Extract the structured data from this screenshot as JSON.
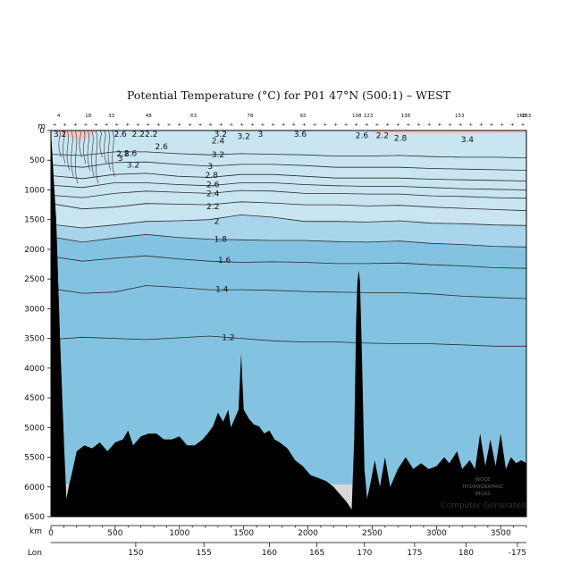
{
  "chart_data": {
    "type": "contour section",
    "title": "Potential Temperature (°C) for P01 47°N (500:1) – WEST",
    "ylabel": "m",
    "xlabel": "km",
    "lon_label": "Lon",
    "ylim": [
      0,
      6500
    ],
    "xlim": [
      0,
      3700
    ],
    "y_ticks": [
      0,
      500,
      1000,
      1500,
      2000,
      2500,
      3000,
      3500,
      4000,
      4500,
      5000,
      5500,
      6000,
      6500
    ],
    "x_ticks": [
      0,
      500,
      1000,
      1500,
      2000,
      2500,
      3000,
      3500
    ],
    "lon_ticks": [
      {
        "km": 660,
        "label": "150"
      },
      {
        "km": 1190,
        "label": "155"
      },
      {
        "km": 1700,
        "label": "160"
      },
      {
        "km": 2070,
        "label": "165"
      },
      {
        "km": 2440,
        "label": "170"
      },
      {
        "km": 2830,
        "label": "175"
      },
      {
        "km": 3230,
        "label": "180"
      },
      {
        "km": 3630,
        "label": "-175"
      }
    ],
    "station_labels": [
      {
        "km": 60,
        "label": "4"
      },
      {
        "km": 290,
        "label": "18"
      },
      {
        "km": 470,
        "label": "33"
      },
      {
        "km": 760,
        "label": "48"
      },
      {
        "km": 1110,
        "label": "63"
      },
      {
        "km": 1550,
        "label": "78"
      },
      {
        "km": 1960,
        "label": "93"
      },
      {
        "km": 2380,
        "label": "108"
      },
      {
        "km": 2470,
        "label": "123"
      },
      {
        "km": 2760,
        "label": "138"
      },
      {
        "km": 3180,
        "label": "153"
      },
      {
        "km": 3660,
        "label": "168"
      },
      {
        "km": 3700,
        "label": "183"
      }
    ],
    "contours": [
      {
        "value": "1.2",
        "depths": [
          3520,
          3480,
          3500,
          3520,
          3490,
          3460,
          3500,
          3540,
          3560,
          3560,
          3580,
          3590,
          3590,
          3610,
          3630,
          3630
        ]
      },
      {
        "value": "1.4",
        "depths": [
          2660,
          2740,
          2720,
          2610,
          2640,
          2680,
          2680,
          2690,
          2710,
          2720,
          2730,
          2730,
          2750,
          2790,
          2810,
          2830
        ]
      },
      {
        "value": "1.6",
        "depths": [
          2120,
          2200,
          2150,
          2110,
          2160,
          2200,
          2220,
          2210,
          2220,
          2240,
          2240,
          2230,
          2260,
          2280,
          2310,
          2320
        ]
      },
      {
        "value": "1.8",
        "depths": [
          1790,
          1880,
          1810,
          1750,
          1800,
          1830,
          1840,
          1850,
          1850,
          1870,
          1880,
          1860,
          1900,
          1920,
          1950,
          1960
        ]
      },
      {
        "value": "2",
        "depths": [
          1580,
          1640,
          1590,
          1530,
          1520,
          1500,
          1420,
          1460,
          1530,
          1530,
          1540,
          1520,
          1560,
          1570,
          1590,
          1600
        ]
      },
      {
        "value": "2.2",
        "depths": [
          1230,
          1320,
          1290,
          1230,
          1240,
          1250,
          1200,
          1220,
          1250,
          1250,
          1270,
          1260,
          1290,
          1310,
          1330,
          1350
        ]
      },
      {
        "value": "2.4",
        "depths": [
          1090,
          1130,
          1060,
          1020,
          1040,
          1060,
          1010,
          1020,
          1060,
          1060,
          1070,
          1070,
          1100,
          1110,
          1130,
          1140
        ]
      },
      {
        "value": "2.6",
        "depths": [
          920,
          960,
          880,
          880,
          910,
          930,
          880,
          880,
          910,
          930,
          940,
          940,
          960,
          980,
          990,
          1000
        ]
      },
      {
        "value": "2.8",
        "depths": [
          760,
          810,
          740,
          720,
          770,
          790,
          740,
          740,
          770,
          800,
          800,
          800,
          820,
          830,
          840,
          850
        ]
      },
      {
        "value": "3",
        "depths": [
          580,
          620,
          540,
          530,
          570,
          600,
          570,
          570,
          590,
          620,
          620,
          620,
          640,
          650,
          660,
          670
        ]
      },
      {
        "value": "3.2",
        "depths": [
          400,
          420,
          360,
          360,
          390,
          410,
          390,
          400,
          410,
          430,
          430,
          420,
          440,
          450,
          450,
          460
        ]
      }
    ],
    "contour_labels": [
      {
        "text": "3.2",
        "km": 70,
        "depth": 60
      },
      {
        "text": "2.6",
        "km": 540,
        "depth": 60
      },
      {
        "text": "2.2",
        "km": 680,
        "depth": 60
      },
      {
        "text": "2.2",
        "km": 780,
        "depth": 60
      },
      {
        "text": "2.6",
        "km": 860,
        "depth": 270
      },
      {
        "text": "2.6",
        "km": 620,
        "depth": 380
      },
      {
        "text": "2.8",
        "km": 560,
        "depth": 390
      },
      {
        "text": "3",
        "km": 540,
        "depth": 470
      },
      {
        "text": "3.2",
        "km": 640,
        "depth": 580
      },
      {
        "text": "3.2",
        "km": 1320,
        "depth": 60
      },
      {
        "text": "2.4",
        "km": 1300,
        "depth": 170
      },
      {
        "text": "3.2",
        "km": 1500,
        "depth": 100
      },
      {
        "text": "3",
        "km": 1630,
        "depth": 60
      },
      {
        "text": "3.6",
        "km": 1940,
        "depth": 60
      },
      {
        "text": "2.6",
        "km": 2420,
        "depth": 80
      },
      {
        "text": "2.2",
        "km": 2580,
        "depth": 80
      },
      {
        "text": "2.8",
        "km": 2720,
        "depth": 130
      },
      {
        "text": "3.4",
        "km": 3240,
        "depth": 150
      },
      {
        "text": "3.2",
        "km": 1300,
        "depth": 410
      },
      {
        "text": "3",
        "km": 1240,
        "depth": 600
      },
      {
        "text": "2.8",
        "km": 1250,
        "depth": 750
      },
      {
        "text": "2.6",
        "km": 1260,
        "depth": 910
      },
      {
        "text": "2.4",
        "km": 1260,
        "depth": 1060
      },
      {
        "text": "2.2",
        "km": 1260,
        "depth": 1280
      },
      {
        "text": "2",
        "km": 1290,
        "depth": 1530
      },
      {
        "text": "1.8",
        "km": 1320,
        "depth": 1830
      },
      {
        "text": "1.6",
        "km": 1350,
        "depth": 2180
      },
      {
        "text": "1.4",
        "km": 1330,
        "depth": 2670
      },
      {
        "text": "1.2",
        "km": 1380,
        "depth": 3480
      }
    ],
    "bottom_profile": [
      [
        0,
        150
      ],
      [
        40,
        1500
      ],
      [
        70,
        3500
      ],
      [
        100,
        5200
      ],
      [
        120,
        6200
      ],
      [
        140,
        5980
      ],
      [
        160,
        5800
      ],
      [
        200,
        5400
      ],
      [
        260,
        5300
      ],
      [
        320,
        5350
      ],
      [
        380,
        5250
      ],
      [
        440,
        5400
      ],
      [
        500,
        5250
      ],
      [
        560,
        5200
      ],
      [
        600,
        5050
      ],
      [
        640,
        5300
      ],
      [
        700,
        5150
      ],
      [
        760,
        5100
      ],
      [
        820,
        5100
      ],
      [
        880,
        5200
      ],
      [
        940,
        5200
      ],
      [
        1000,
        5150
      ],
      [
        1060,
        5300
      ],
      [
        1120,
        5300
      ],
      [
        1180,
        5200
      ],
      [
        1220,
        5100
      ],
      [
        1260,
        4980
      ],
      [
        1300,
        4750
      ],
      [
        1340,
        4900
      ],
      [
        1380,
        4700
      ],
      [
        1400,
        5000
      ],
      [
        1440,
        4800
      ],
      [
        1460,
        4700
      ],
      [
        1480,
        3760
      ],
      [
        1500,
        4700
      ],
      [
        1540,
        4850
      ],
      [
        1580,
        4950
      ],
      [
        1620,
        4980
      ],
      [
        1660,
        5100
      ],
      [
        1700,
        5050
      ],
      [
        1740,
        5200
      ],
      [
        1780,
        5250
      ],
      [
        1840,
        5350
      ],
      [
        1900,
        5550
      ],
      [
        1960,
        5650
      ],
      [
        2020,
        5800
      ],
      [
        2080,
        5850
      ],
      [
        2140,
        5900
      ],
      [
        2200,
        6000
      ],
      [
        2260,
        6150
      ],
      [
        2300,
        6250
      ],
      [
        2340,
        6380
      ],
      [
        2360,
        5200
      ],
      [
        2375,
        3200
      ],
      [
        2385,
        2550
      ],
      [
        2395,
        2350
      ],
      [
        2405,
        2550
      ],
      [
        2420,
        3800
      ],
      [
        2440,
        5700
      ],
      [
        2460,
        6200
      ],
      [
        2490,
        5900
      ],
      [
        2520,
        5550
      ],
      [
        2560,
        6000
      ],
      [
        2600,
        5500
      ],
      [
        2640,
        6000
      ],
      [
        2700,
        5700
      ],
      [
        2760,
        5500
      ],
      [
        2820,
        5700
      ],
      [
        2880,
        5600
      ],
      [
        2940,
        5700
      ],
      [
        3000,
        5650
      ],
      [
        3060,
        5500
      ],
      [
        3100,
        5600
      ],
      [
        3160,
        5400
      ],
      [
        3200,
        5700
      ],
      [
        3260,
        5550
      ],
      [
        3300,
        5700
      ],
      [
        3340,
        5100
      ],
      [
        3380,
        5650
      ],
      [
        3420,
        5200
      ],
      [
        3460,
        5650
      ],
      [
        3500,
        5100
      ],
      [
        3540,
        5700
      ],
      [
        3580,
        5500
      ],
      [
        3620,
        5600
      ],
      [
        3660,
        5550
      ],
      [
        3700,
        5600
      ]
    ],
    "colors": {
      "warm": "#f4c8c2",
      "band_light": "#c9e5f2",
      "band_mid": "#a8d5ec",
      "band_deep": "#83c3e1",
      "land": "#000000",
      "missing": "#d8d8d8"
    }
  },
  "watermark": {
    "lines": [
      "WOCE",
      "HYDROGRAPHIC",
      "ATLAS"
    ],
    "credit": "Computer Generated"
  }
}
